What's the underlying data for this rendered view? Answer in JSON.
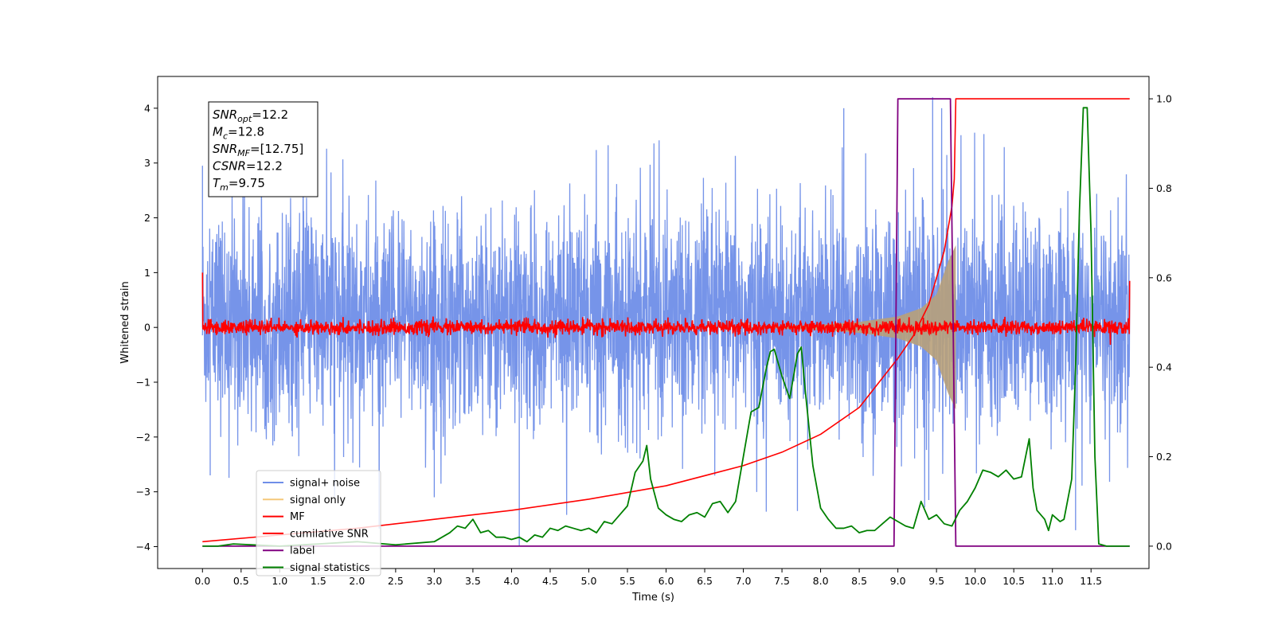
{
  "chart_data": {
    "type": "line",
    "xlabel": "Time (s)",
    "ylabel": "Whitened strain",
    "xlim": [
      -0.58,
      12.25
    ],
    "ylim_left": [
      -4.4,
      4.58
    ],
    "ylim_right": [
      -0.05,
      1.05
    ],
    "x_ticks": [
      0.0,
      0.5,
      1.0,
      1.5,
      2.0,
      2.5,
      3.0,
      3.5,
      4.0,
      4.5,
      5.0,
      5.5,
      6.0,
      6.5,
      7.0,
      7.5,
      8.0,
      8.5,
      9.0,
      9.5,
      10.0,
      10.5,
      11.0,
      11.5
    ],
    "x_tick_labels": [
      "0.0",
      "0.5",
      "1.0",
      "1.5",
      "2.0",
      "2.5",
      "3.0",
      "3.5",
      "4.0",
      "4.5",
      "5.0",
      "5.5",
      "6.0",
      "6.5",
      "7.0",
      "7.5",
      "8.0",
      "8.5",
      "9.0",
      "9.5",
      "10.0",
      "10.5",
      "11.0",
      "11.5"
    ],
    "y_left_ticks": [
      -4,
      -3,
      -2,
      -1,
      0,
      1,
      2,
      3,
      4
    ],
    "y_left_tick_labels": [
      "−4",
      "−3",
      "−2",
      "−1",
      "0",
      "1",
      "2",
      "3",
      "4"
    ],
    "y_right_ticks": [
      0.0,
      0.2,
      0.4,
      0.6,
      0.8,
      1.0
    ],
    "y_right_tick_labels": [
      "0.0",
      "0.2",
      "0.4",
      "0.6",
      "0.8",
      "1.0"
    ],
    "grid": false,
    "legend_position": "lower-left",
    "colors": {
      "signal_noise": "#6f8ee8",
      "signal_only": "#f5c87a",
      "signal_only_overlap": "#b8a07a",
      "mf": "#ff0000",
      "cumulative_snr": "#ff0000",
      "label": "#800080",
      "signal_statistics": "#008000"
    },
    "series": [
      {
        "name": "signal+ noise",
        "axis": "left",
        "x_range": [
          0.0,
          12.0
        ],
        "description_values": {
          "envelope_typical": [
            -2.0,
            2.3
          ],
          "max_spike": 4.2,
          "min_spike": -4.0
        }
      },
      {
        "name": "signal only",
        "axis": "left",
        "x_range": [
          0.0,
          9.75
        ],
        "amplitude_points": [
          [
            7.0,
            0.0
          ],
          [
            8.0,
            0.05
          ],
          [
            8.5,
            0.1
          ],
          [
            9.0,
            0.2
          ],
          [
            9.3,
            0.35
          ],
          [
            9.5,
            0.6
          ],
          [
            9.65,
            1.2
          ],
          [
            9.75,
            1.5
          ]
        ]
      },
      {
        "name": "MF",
        "axis": "left",
        "x_range": [
          0.0,
          12.0
        ],
        "noise_amplitude": 0.12,
        "end_values": [
          [
            0.0,
            1.0
          ],
          [
            12.0,
            0.85
          ]
        ]
      },
      {
        "name": "cumilative SNR",
        "axis": "right",
        "points": [
          [
            0.0,
            0.01
          ],
          [
            1.0,
            0.025
          ],
          [
            2.0,
            0.04
          ],
          [
            3.0,
            0.06
          ],
          [
            4.0,
            0.08
          ],
          [
            5.0,
            0.105
          ],
          [
            6.0,
            0.135
          ],
          [
            7.0,
            0.18
          ],
          [
            7.5,
            0.21
          ],
          [
            8.0,
            0.25
          ],
          [
            8.5,
            0.31
          ],
          [
            9.0,
            0.42
          ],
          [
            9.2,
            0.47
          ],
          [
            9.4,
            0.54
          ],
          [
            9.6,
            0.66
          ],
          [
            9.7,
            0.76
          ],
          [
            9.73,
            0.82
          ],
          [
            9.75,
            1.0
          ],
          [
            12.0,
            1.0
          ]
        ]
      },
      {
        "name": "label",
        "axis": "right",
        "points": [
          [
            0.0,
            0.0
          ],
          [
            8.95,
            0.0
          ],
          [
            9.0,
            1.0
          ],
          [
            9.68,
            1.0
          ],
          [
            9.75,
            0.0
          ],
          [
            12.0,
            0.0
          ]
        ]
      },
      {
        "name": "signal statistics",
        "axis": "right",
        "points": [
          [
            0.0,
            0.0
          ],
          [
            0.2,
            0.0
          ],
          [
            0.4,
            0.005
          ],
          [
            1.0,
            0.0
          ],
          [
            1.5,
            0.005
          ],
          [
            2.0,
            0.01
          ],
          [
            2.5,
            0.003
          ],
          [
            3.0,
            0.01
          ],
          [
            3.2,
            0.03
          ],
          [
            3.3,
            0.045
          ],
          [
            3.4,
            0.04
          ],
          [
            3.5,
            0.06
          ],
          [
            3.6,
            0.03
          ],
          [
            3.7,
            0.035
          ],
          [
            3.8,
            0.02
          ],
          [
            3.9,
            0.02
          ],
          [
            4.0,
            0.015
          ],
          [
            4.1,
            0.02
          ],
          [
            4.2,
            0.01
          ],
          [
            4.3,
            0.025
          ],
          [
            4.4,
            0.02
          ],
          [
            4.5,
            0.04
          ],
          [
            4.6,
            0.035
          ],
          [
            4.7,
            0.045
          ],
          [
            4.8,
            0.04
          ],
          [
            4.9,
            0.035
          ],
          [
            5.0,
            0.04
          ],
          [
            5.1,
            0.03
          ],
          [
            5.2,
            0.055
          ],
          [
            5.3,
            0.05
          ],
          [
            5.4,
            0.07
          ],
          [
            5.5,
            0.09
          ],
          [
            5.6,
            0.165
          ],
          [
            5.7,
            0.19
          ],
          [
            5.75,
            0.225
          ],
          [
            5.8,
            0.15
          ],
          [
            5.9,
            0.085
          ],
          [
            6.0,
            0.07
          ],
          [
            6.1,
            0.06
          ],
          [
            6.2,
            0.055
          ],
          [
            6.3,
            0.07
          ],
          [
            6.4,
            0.075
          ],
          [
            6.5,
            0.065
          ],
          [
            6.6,
            0.095
          ],
          [
            6.7,
            0.1
          ],
          [
            6.8,
            0.075
          ],
          [
            6.9,
            0.1
          ],
          [
            7.0,
            0.2
          ],
          [
            7.1,
            0.3
          ],
          [
            7.2,
            0.31
          ],
          [
            7.3,
            0.4
          ],
          [
            7.35,
            0.435
          ],
          [
            7.4,
            0.44
          ],
          [
            7.5,
            0.38
          ],
          [
            7.6,
            0.33
          ],
          [
            7.7,
            0.43
          ],
          [
            7.75,
            0.445
          ],
          [
            7.8,
            0.35
          ],
          [
            7.9,
            0.18
          ],
          [
            8.0,
            0.085
          ],
          [
            8.1,
            0.06
          ],
          [
            8.2,
            0.04
          ],
          [
            8.3,
            0.04
          ],
          [
            8.4,
            0.045
          ],
          [
            8.5,
            0.03
          ],
          [
            8.6,
            0.035
          ],
          [
            8.7,
            0.035
          ],
          [
            8.8,
            0.05
          ],
          [
            8.9,
            0.065
          ],
          [
            9.0,
            0.055
          ],
          [
            9.1,
            0.045
          ],
          [
            9.2,
            0.04
          ],
          [
            9.3,
            0.1
          ],
          [
            9.4,
            0.06
          ],
          [
            9.5,
            0.07
          ],
          [
            9.6,
            0.05
          ],
          [
            9.7,
            0.045
          ],
          [
            9.8,
            0.08
          ],
          [
            9.9,
            0.1
          ],
          [
            10.0,
            0.13
          ],
          [
            10.1,
            0.17
          ],
          [
            10.2,
            0.165
          ],
          [
            10.3,
            0.155
          ],
          [
            10.4,
            0.17
          ],
          [
            10.5,
            0.15
          ],
          [
            10.6,
            0.155
          ],
          [
            10.7,
            0.24
          ],
          [
            10.75,
            0.13
          ],
          [
            10.8,
            0.08
          ],
          [
            10.9,
            0.06
          ],
          [
            10.95,
            0.035
          ],
          [
            11.0,
            0.07
          ],
          [
            11.1,
            0.055
          ],
          [
            11.15,
            0.06
          ],
          [
            11.25,
            0.15
          ],
          [
            11.3,
            0.4
          ],
          [
            11.35,
            0.75
          ],
          [
            11.4,
            0.98
          ],
          [
            11.45,
            0.98
          ],
          [
            11.5,
            0.7
          ],
          [
            11.55,
            0.2
          ],
          [
            11.6,
            0.005
          ],
          [
            11.7,
            0.0
          ],
          [
            12.0,
            0.0
          ]
        ]
      }
    ],
    "annotation_box": [
      {
        "var": "SNR",
        "sub": "opt",
        "value": "=12.2"
      },
      {
        "var": "M",
        "sub": "c",
        "value": "=12.8"
      },
      {
        "var": "SNR",
        "sub": "MF",
        "value": "=[12.75]"
      },
      {
        "var": "CSNR",
        "sub": "",
        "value": "=12.2"
      },
      {
        "var": "T",
        "sub": "m",
        "value": "=9.75"
      }
    ]
  }
}
